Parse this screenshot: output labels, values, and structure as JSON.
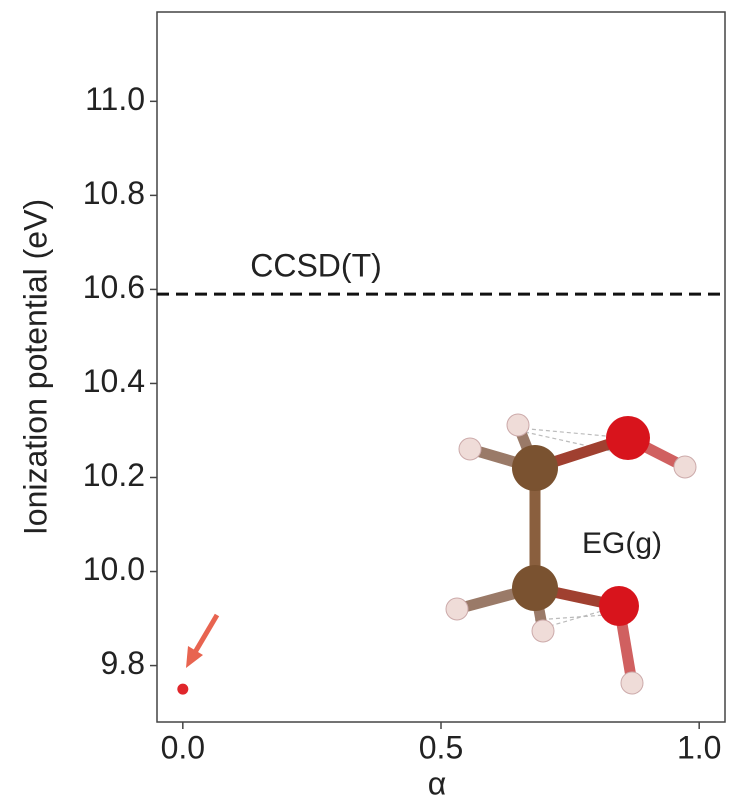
{
  "chart_data": {
    "type": "scatter",
    "x_label": "α",
    "y_label": "Ionization potential (eV)",
    "x": [
      0.0
    ],
    "values": [
      9.75
    ],
    "color": "#e0262b",
    "xlim": [
      -0.05,
      1.05
    ],
    "ylim": [
      9.68,
      11.19
    ],
    "xticks": [
      {
        "value": 0,
        "label": "0.0"
      },
      {
        "value": 0.5,
        "label": "0.5"
      },
      {
        "value": 1,
        "label": "1.0"
      }
    ],
    "yticks": [
      {
        "value": 9.8,
        "label": "9.8"
      },
      {
        "value": 10,
        "label": "10.0"
      },
      {
        "value": 10.2,
        "label": "10.2"
      },
      {
        "value": 10.4,
        "label": "10.4"
      },
      {
        "value": 10.6,
        "label": "10.6"
      },
      {
        "value": 10.8,
        "label": "10.8"
      },
      {
        "value": 11,
        "label": "11.0"
      }
    ],
    "reference_line": {
      "value": 10.59,
      "label": "CCSD(T)",
      "style": "dashed"
    },
    "annotation": "EG(g)"
  }
}
